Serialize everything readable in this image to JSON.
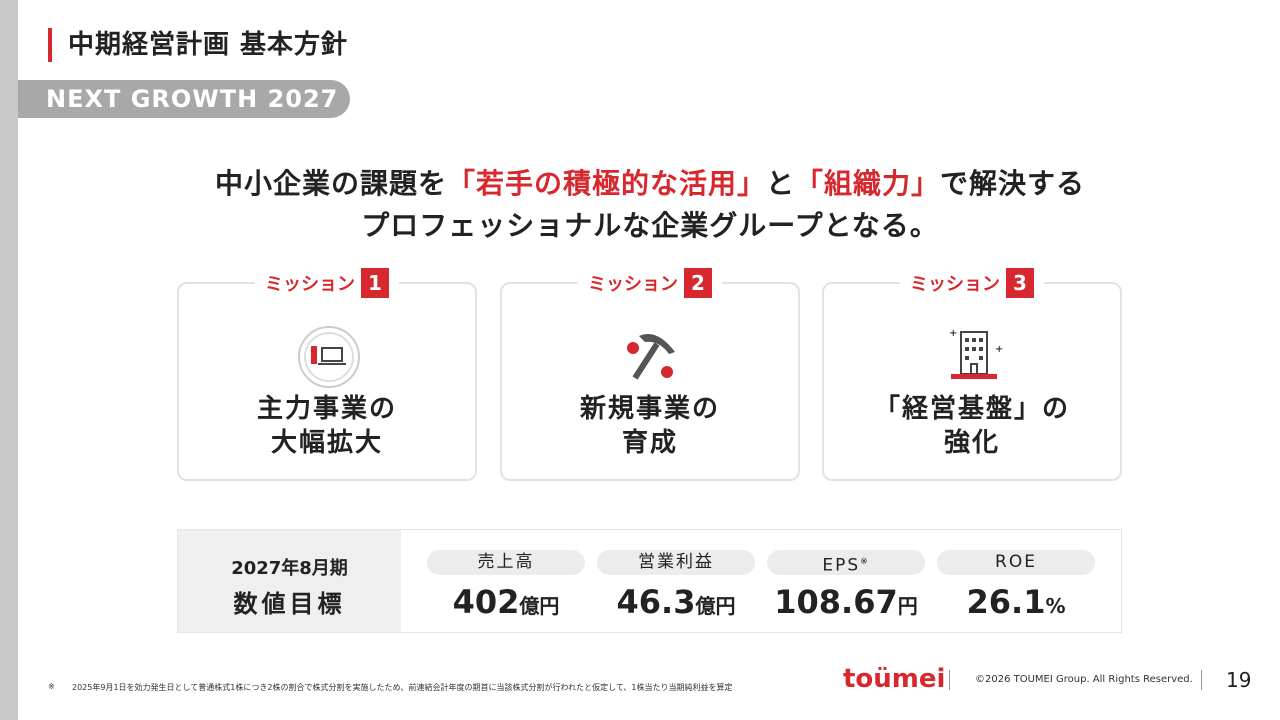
{
  "header": {
    "title": "中期経営計画 基本方針",
    "subtitle": "NEXT GROWTH 2027"
  },
  "statement": {
    "line1": [
      "中小企業の課題を",
      "「若手の積極的な活用」",
      "と",
      "「組織力」",
      "で解決する"
    ],
    "line2": "プロフェッショナルな企業グループとなる。"
  },
  "missions": [
    {
      "label": "ミッション",
      "number": "1",
      "title": [
        "主力事業の",
        "大幅拡大"
      ]
    },
    {
      "label": "ミッション",
      "number": "2",
      "title": [
        "新規事業の",
        "育成"
      ]
    },
    {
      "label": "ミッション",
      "number": "3",
      "title": [
        "「経営基盤」の",
        "強化"
      ]
    }
  ],
  "targets": {
    "label": [
      "2027年8月期",
      "数値目標"
    ],
    "items": [
      {
        "name": "売上高",
        "value": "402",
        "unit": "億円"
      },
      {
        "name": "営業利益",
        "value": "46.3",
        "unit": "億円"
      },
      {
        "name": "EPS",
        "note": "※",
        "value": "108.67",
        "unit": "円"
      },
      {
        "name": "ROE",
        "value": "26.1",
        "unit": "%"
      }
    ]
  },
  "footer": {
    "note_mark": "※",
    "note": "2025年9月1日を効力発生日として普通株式1株につき2株の割合で株式分割を実施したため、前連結会計年度の期首に当該株式分割が行われたと仮定して、1株当たり当期純利益を算定",
    "logo": "toümei",
    "copyright": "©2026 TOUMEI Group. All Rights Reserved.",
    "page": "19"
  }
}
